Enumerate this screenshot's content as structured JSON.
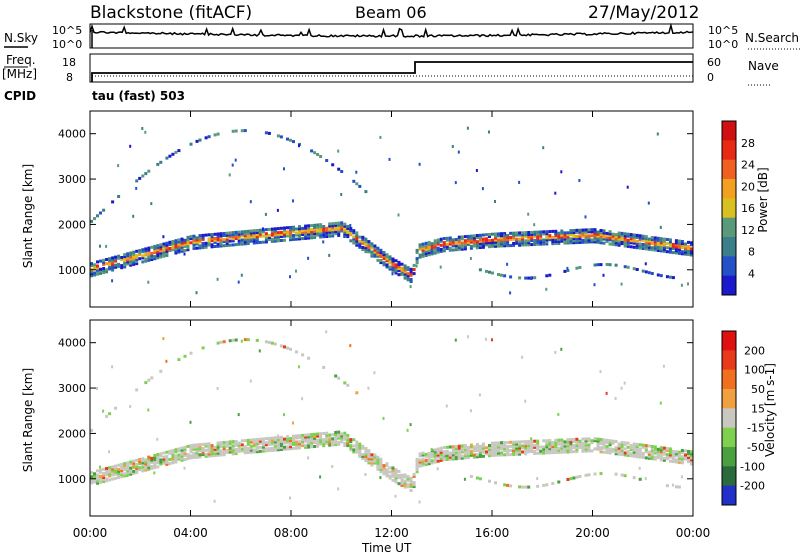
{
  "header": {
    "station": "Blackstone (fitACF)",
    "beam": "Beam 06",
    "date": "27/May/2012"
  },
  "noise_panel": {
    "left_label": "N.Sky",
    "left_ticks": [
      "10^5",
      "10^0"
    ],
    "right_label": "N.Search",
    "right_ticks": [
      "10^5",
      "10^0"
    ]
  },
  "freq_panel": {
    "left_label_1": "Freq.",
    "left_label_2": "[MHz]",
    "left_ticks": [
      "18",
      "8"
    ],
    "right_label": "Nave",
    "right_ticks": [
      "60",
      "0"
    ],
    "cpid_label": "CPID",
    "cpid_value": "tau (fast) 503"
  },
  "colors": {
    "power_scale": [
      "#1a1acc",
      "#2450c8",
      "#3a7f8a",
      "#5a9a7a",
      "#d8c020",
      "#f2a020",
      "#f06020",
      "#e82a14",
      "#d01010"
    ],
    "velocity_scale": [
      "#2030c8",
      "#2a6a3c",
      "#4aa040",
      "#80d050",
      "#c8c8c0",
      "#f0a040",
      "#f07020",
      "#e83a1a",
      "#e01010"
    ]
  },
  "chart_data": [
    {
      "type": "heatmap",
      "title": "",
      "xlabel": "",
      "ylabel": "Slant Range [km]",
      "xticks": [
        "00:00",
        "04:00",
        "08:00",
        "12:00",
        "16:00",
        "20:00",
        "00:00"
      ],
      "xlim_hours": [
        0,
        24
      ],
      "ylim_km": [
        180,
        4500
      ],
      "yticks": [
        1000,
        2000,
        3000,
        4000
      ],
      "colorbar_label": "Power [dB]",
      "colorbar_ticks": [
        "28",
        "24",
        "20",
        "16",
        "12",
        "8",
        "4"
      ],
      "colorbar_range": [
        0,
        30
      ],
      "main_band_km": [
        [
          0,
          1050
        ],
        [
          2,
          1350
        ],
        [
          4,
          1650
        ],
        [
          6,
          1750
        ],
        [
          8,
          1850
        ],
        [
          10,
          1950
        ],
        [
          11,
          1550
        ],
        [
          12,
          1150
        ],
        [
          12.8,
          900
        ],
        [
          13,
          1450
        ],
        [
          14,
          1600
        ],
        [
          16,
          1700
        ],
        [
          18,
          1750
        ],
        [
          20,
          1800
        ],
        [
          22,
          1650
        ],
        [
          24,
          1500
        ]
      ]
    },
    {
      "type": "heatmap",
      "title": "",
      "xlabel": "Time UT",
      "ylabel": "Slant Range [km]",
      "xticks": [
        "00:00",
        "04:00",
        "08:00",
        "12:00",
        "16:00",
        "20:00",
        "00:00"
      ],
      "xlim_hours": [
        0,
        24
      ],
      "ylim_km": [
        180,
        4500
      ],
      "yticks": [
        1000,
        2000,
        3000,
        4000
      ],
      "colorbar_label": "Velocity [m s-1]",
      "colorbar_ticks": [
        "200",
        "100",
        "50",
        "15",
        "-15",
        "-50",
        "-100",
        "-200"
      ],
      "colorbar_range": [
        -250,
        250
      ]
    }
  ]
}
